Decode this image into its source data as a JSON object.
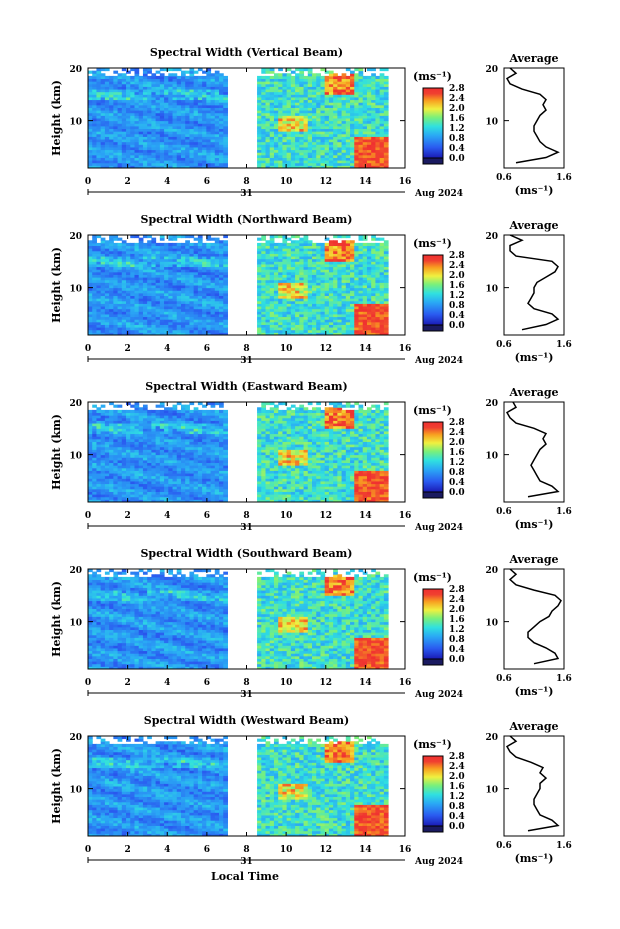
{
  "figure": {
    "xlabel_bottom": "Local Time",
    "y_unit_label": "Height (km)",
    "date_label": "Aug 2024",
    "day_label": "31",
    "colorbar_unit": "(ms⁻¹)",
    "average_title": "Average",
    "average_xunit": "(ms⁻¹)"
  },
  "chart_data": [
    {
      "type": "heatmap",
      "title": "Spectral Width (Vertical Beam)",
      "xlabel": "Local Time",
      "ylabel": "Height (km)",
      "xlim": [
        0,
        16
      ],
      "ylim": [
        1,
        20
      ],
      "x_ticks": [
        "0",
        "2",
        "4",
        "6",
        "8",
        "10",
        "12",
        "14",
        "16"
      ],
      "y_ticks": [
        "10",
        "20"
      ],
      "data_gap_hours": [
        7.0,
        8.5
      ],
      "colorbar": {
        "min": 0.0,
        "max": 2.8,
        "ticks": [
          "0.0",
          "0.4",
          "0.8",
          "1.2",
          "1.6",
          "2.0",
          "2.4",
          "2.8"
        ]
      },
      "average_profile": {
        "xlim": [
          0.6,
          1.6
        ],
        "x_ticks": [
          "0.6",
          "1.6"
        ],
        "y_ticks": [
          "10",
          "20"
        ],
        "height": [
          2,
          3,
          4,
          5,
          6,
          7,
          8,
          9,
          10,
          11,
          12,
          13,
          14,
          15,
          16,
          17,
          18,
          19,
          20
        ],
        "value": [
          0.8,
          1.3,
          1.5,
          1.3,
          1.2,
          1.15,
          1.1,
          1.1,
          1.15,
          1.2,
          1.3,
          1.25,
          1.3,
          1.2,
          0.9,
          0.7,
          0.65,
          0.8,
          0.7
        ]
      }
    },
    {
      "type": "heatmap",
      "title": "Spectral Width (Northward Beam)",
      "xlabel": "Local Time",
      "ylabel": "Height (km)",
      "xlim": [
        0,
        16
      ],
      "ylim": [
        1,
        20
      ],
      "x_ticks": [
        "0",
        "2",
        "4",
        "6",
        "8",
        "10",
        "12",
        "14",
        "16"
      ],
      "y_ticks": [
        "10",
        "20"
      ],
      "data_gap_hours": [
        7.0,
        8.5
      ],
      "colorbar": {
        "min": 0.0,
        "max": 2.8,
        "ticks": [
          "0.0",
          "0.4",
          "0.8",
          "1.2",
          "1.6",
          "2.0",
          "2.4",
          "2.8"
        ]
      },
      "average_profile": {
        "xlim": [
          0.6,
          1.6
        ],
        "x_ticks": [
          "0.6",
          "1.6"
        ],
        "y_ticks": [
          "10",
          "20"
        ],
        "height": [
          2,
          3,
          4,
          5,
          6,
          7,
          8,
          9,
          10,
          11,
          12,
          13,
          14,
          15,
          16,
          17,
          18,
          19,
          20
        ],
        "value": [
          0.9,
          1.3,
          1.5,
          1.4,
          1.1,
          1.0,
          1.05,
          1.1,
          1.1,
          1.15,
          1.3,
          1.45,
          1.5,
          1.4,
          0.8,
          0.7,
          0.7,
          0.9,
          0.7
        ]
      }
    },
    {
      "type": "heatmap",
      "title": "Spectral Width (Eastward Beam)",
      "xlabel": "Local Time",
      "ylabel": "Height (km)",
      "xlim": [
        0,
        16
      ],
      "ylim": [
        1,
        20
      ],
      "x_ticks": [
        "0",
        "2",
        "4",
        "6",
        "8",
        "10",
        "12",
        "14",
        "16"
      ],
      "y_ticks": [
        "10",
        "20"
      ],
      "data_gap_hours": [
        7.0,
        8.5
      ],
      "colorbar": {
        "min": 0.0,
        "max": 2.8,
        "ticks": [
          "0.0",
          "0.4",
          "0.8",
          "1.2",
          "1.6",
          "2.0",
          "2.4",
          "2.8"
        ]
      },
      "average_profile": {
        "xlim": [
          0.6,
          1.6
        ],
        "x_ticks": [
          "0.6",
          "1.6"
        ],
        "y_ticks": [
          "10",
          "20"
        ],
        "height": [
          2,
          3,
          4,
          5,
          6,
          7,
          8,
          9,
          10,
          11,
          12,
          13,
          14,
          15,
          16,
          17,
          18,
          19,
          20
        ],
        "value": [
          1.0,
          1.5,
          1.4,
          1.2,
          1.15,
          1.1,
          1.05,
          1.1,
          1.15,
          1.2,
          1.3,
          1.25,
          1.3,
          1.1,
          0.8,
          0.7,
          0.65,
          0.8,
          0.75
        ]
      }
    },
    {
      "type": "heatmap",
      "title": "Spectral Width (Southward Beam)",
      "xlabel": "Local Time",
      "ylabel": "Height (km)",
      "xlim": [
        0,
        16
      ],
      "ylim": [
        1,
        20
      ],
      "x_ticks": [
        "0",
        "2",
        "4",
        "6",
        "8",
        "10",
        "12",
        "14",
        "16"
      ],
      "y_ticks": [
        "10",
        "20"
      ],
      "data_gap_hours": [
        7.0,
        8.5
      ],
      "colorbar": {
        "min": 0.0,
        "max": 2.8,
        "ticks": [
          "0.0",
          "0.4",
          "0.8",
          "1.2",
          "1.6",
          "2.0",
          "2.4",
          "2.8"
        ]
      },
      "average_profile": {
        "xlim": [
          0.6,
          1.6
        ],
        "x_ticks": [
          "0.6",
          "1.6"
        ],
        "y_ticks": [
          "10",
          "20"
        ],
        "height": [
          2,
          3,
          4,
          5,
          6,
          7,
          8,
          9,
          10,
          11,
          12,
          13,
          14,
          15,
          16,
          17,
          18,
          19,
          20
        ],
        "value": [
          1.1,
          1.5,
          1.45,
          1.3,
          1.1,
          1.0,
          1.0,
          1.1,
          1.2,
          1.35,
          1.4,
          1.5,
          1.55,
          1.45,
          1.1,
          0.8,
          0.7,
          0.8,
          0.7
        ]
      }
    },
    {
      "type": "heatmap",
      "title": "Spectral Width (Westward Beam)",
      "xlabel": "Local Time",
      "ylabel": "Height (km)",
      "xlim": [
        0,
        16
      ],
      "ylim": [
        1,
        20
      ],
      "x_ticks": [
        "0",
        "2",
        "4",
        "6",
        "8",
        "10",
        "12",
        "14",
        "16"
      ],
      "y_ticks": [
        "10",
        "20"
      ],
      "data_gap_hours": [
        7.0,
        8.5
      ],
      "colorbar": {
        "min": 0.0,
        "max": 2.8,
        "ticks": [
          "0.0",
          "0.4",
          "0.8",
          "1.2",
          "1.6",
          "2.0",
          "2.4",
          "2.8"
        ]
      },
      "average_profile": {
        "xlim": [
          0.6,
          1.6
        ],
        "x_ticks": [
          "0.6",
          "1.6"
        ],
        "y_ticks": [
          "10",
          "20"
        ],
        "height": [
          2,
          3,
          4,
          5,
          6,
          7,
          8,
          9,
          10,
          11,
          12,
          13,
          14,
          15,
          16,
          17,
          18,
          19,
          20
        ],
        "value": [
          1.0,
          1.5,
          1.4,
          1.2,
          1.15,
          1.1,
          1.1,
          1.15,
          1.2,
          1.2,
          1.3,
          1.2,
          1.25,
          1.05,
          0.8,
          0.7,
          0.65,
          0.8,
          0.7
        ]
      }
    }
  ]
}
